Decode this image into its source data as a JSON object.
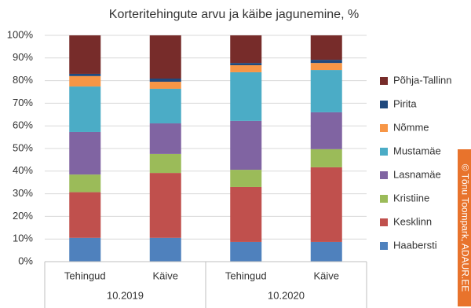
{
  "chart_data": {
    "type": "stacked_bar_100",
    "title": "Korteritehingute arvu ja käibe jagunemine, %",
    "categories": [
      "Tehingud",
      "Käive",
      "Tehingud",
      "Käive"
    ],
    "groups": [
      "10.2019",
      "10.2020"
    ],
    "series": [
      {
        "name": "Haabersti",
        "color": "#4f81bd",
        "values": [
          10.5,
          10.5,
          8.7,
          8.7
        ]
      },
      {
        "name": "Kesklinn",
        "color": "#c0504d",
        "values": [
          20.2,
          28.7,
          24.3,
          33.0
        ]
      },
      {
        "name": "Kristiine",
        "color": "#9bbb59",
        "values": [
          7.8,
          8.4,
          7.6,
          8.0
        ]
      },
      {
        "name": "Lasnamäe",
        "color": "#8064a2",
        "values": [
          18.8,
          13.5,
          21.6,
          16.3
        ]
      },
      {
        "name": "Mustamäe",
        "color": "#4bacc6",
        "values": [
          20.1,
          15.3,
          21.5,
          18.7
        ]
      },
      {
        "name": "Nõmme",
        "color": "#f79646",
        "values": [
          4.6,
          3.1,
          3.1,
          3.1
        ]
      },
      {
        "name": "Pirita",
        "color": "#1f497d",
        "values": [
          1.0,
          1.4,
          1.0,
          1.4
        ]
      },
      {
        "name": "Põhja-Tallinn",
        "color": "#772c2a",
        "values": [
          17.0,
          19.1,
          12.2,
          10.8
        ]
      }
    ],
    "ylim": [
      0,
      100
    ],
    "yticks": [
      {
        "value": 0,
        "label": "0%"
      },
      {
        "value": 10,
        "label": "10%"
      },
      {
        "value": 20,
        "label": "20%"
      },
      {
        "value": 30,
        "label": "30%"
      },
      {
        "value": 40,
        "label": "40%"
      },
      {
        "value": 50,
        "label": "50%"
      },
      {
        "value": 60,
        "label": "60%"
      },
      {
        "value": 70,
        "label": "70%"
      },
      {
        "value": 80,
        "label": "80%"
      },
      {
        "value": 90,
        "label": "90%"
      },
      {
        "value": 100,
        "label": "100%"
      }
    ],
    "grid": true,
    "legend": "right",
    "watermark": "© Tõnu Toompark, ADAUR.EE"
  }
}
